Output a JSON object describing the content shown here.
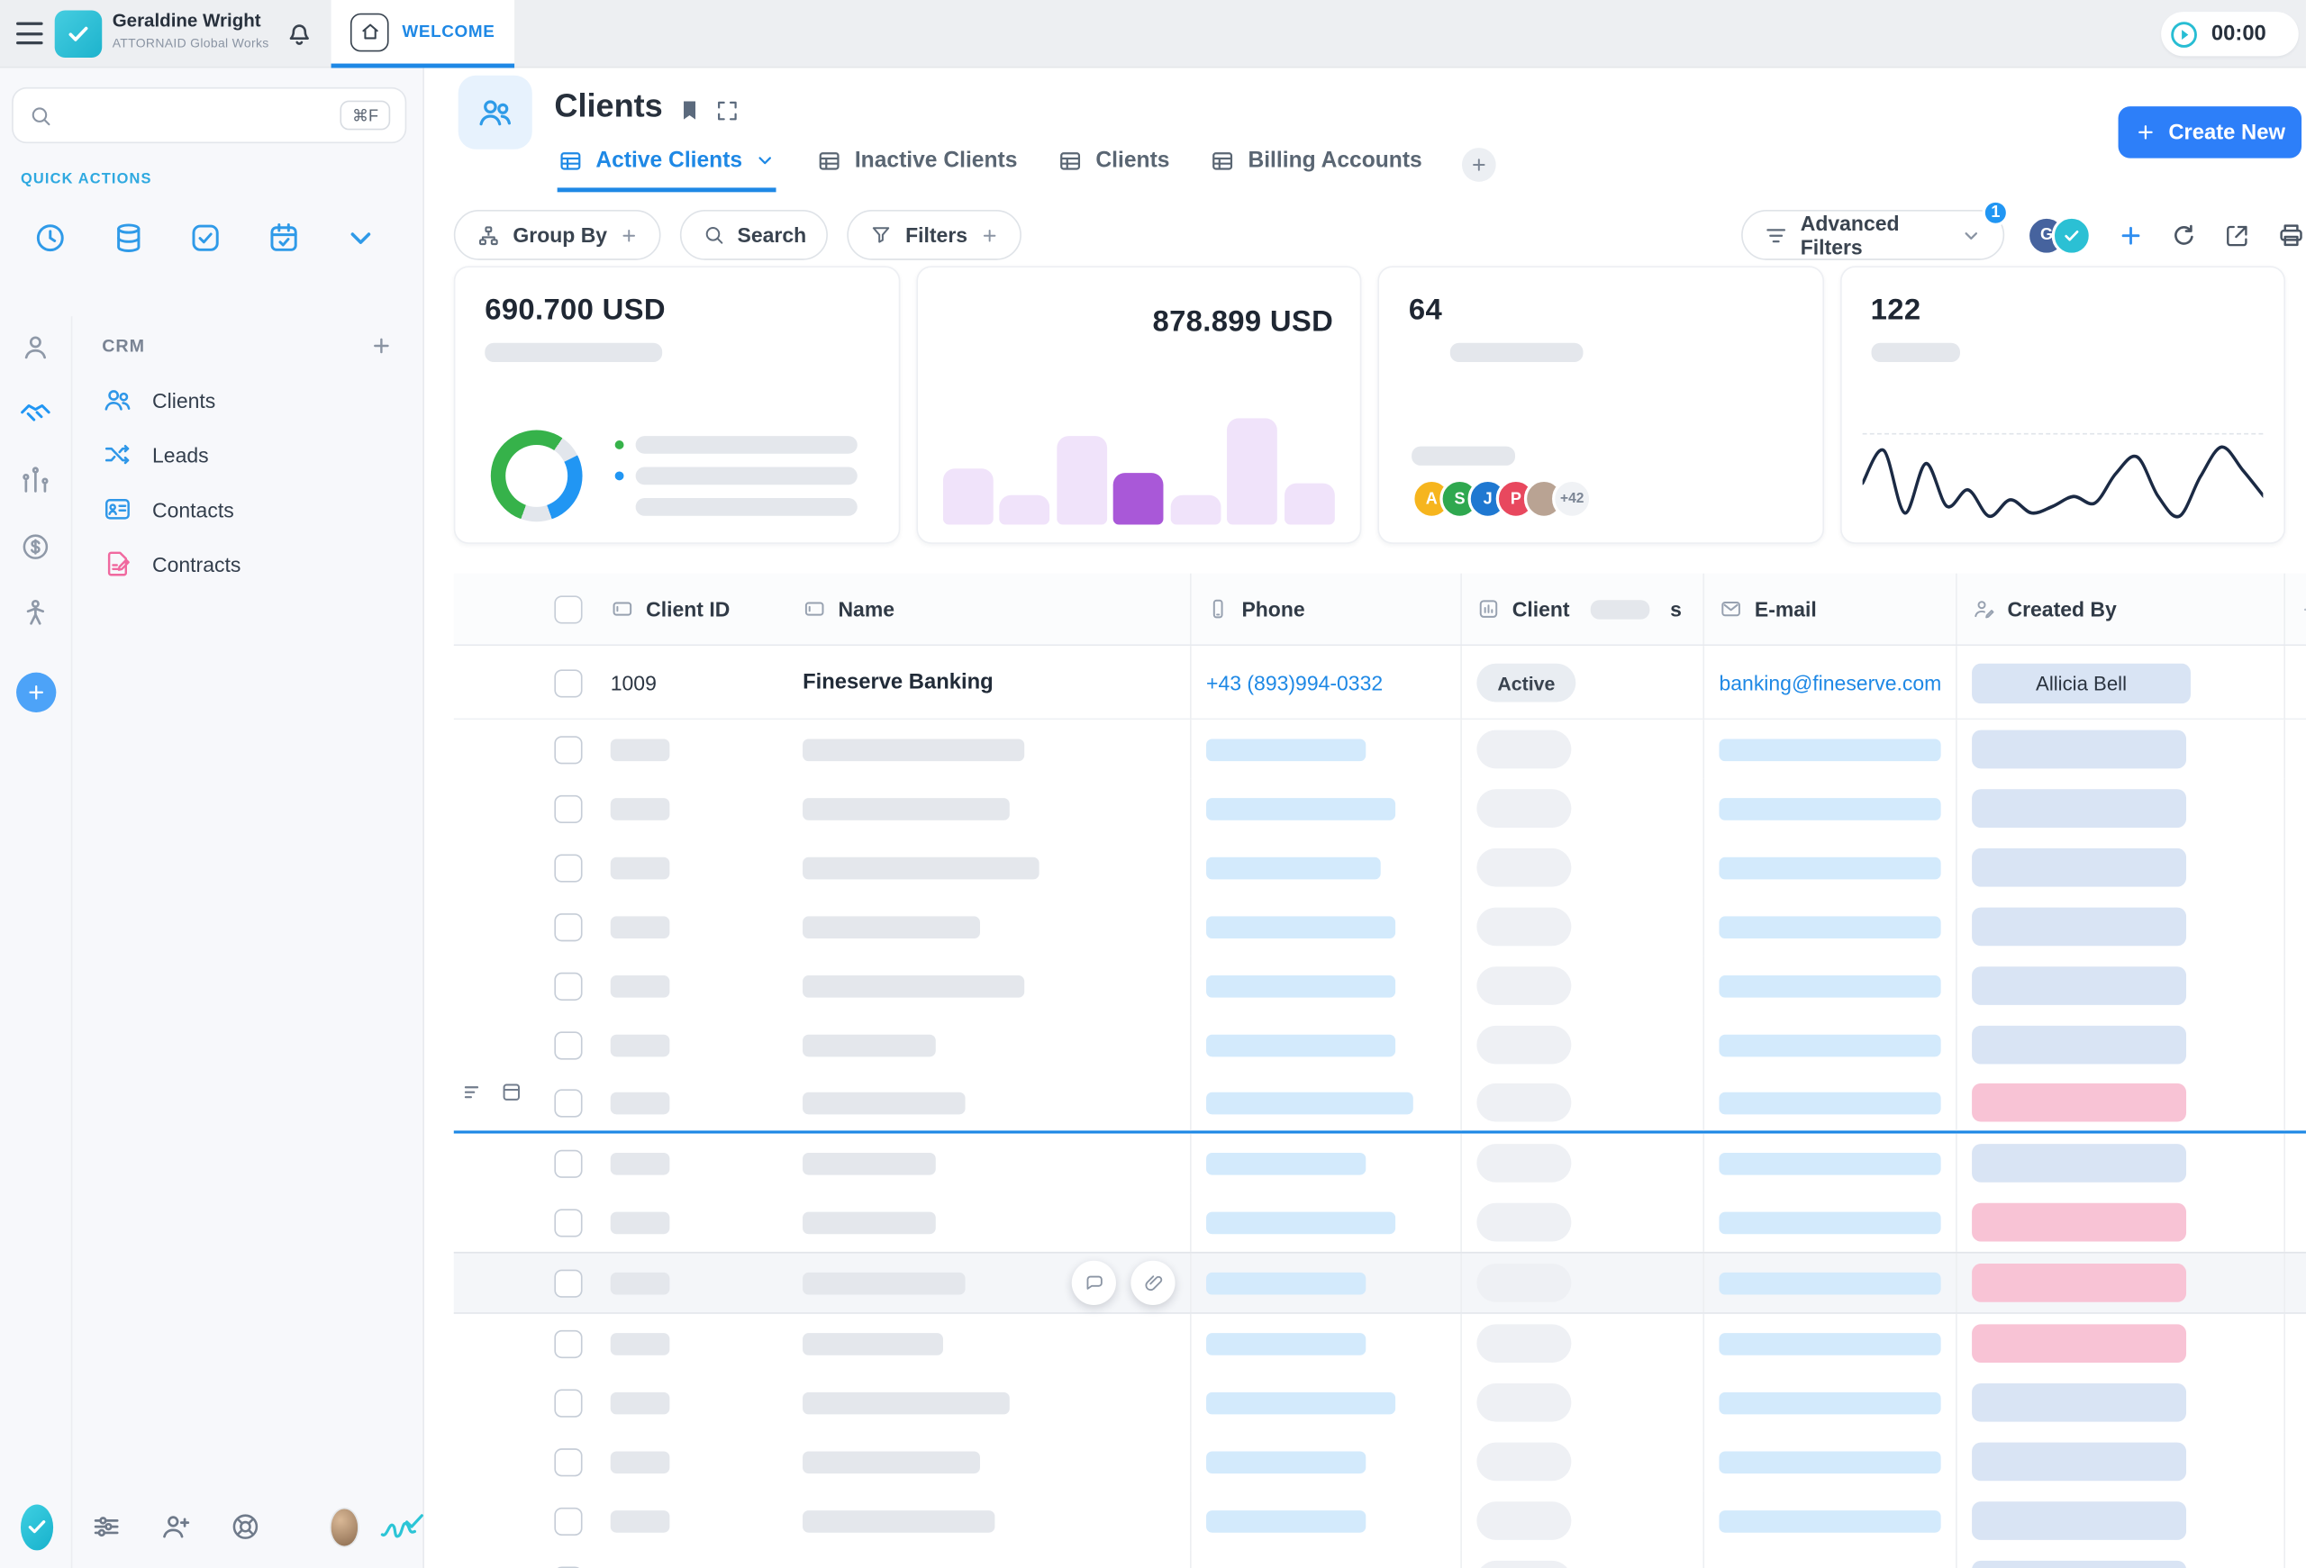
{
  "app": {
    "user_name": "Geraldine Wright",
    "org_name": "ATTORNAID Global Works",
    "active_top_tab": "WELCOME",
    "timer": "00:00"
  },
  "sidebar": {
    "search": {
      "placeholder": "",
      "shortcut": "⌘F"
    },
    "quick_actions_label": "QUICK ACTIONS",
    "crm": {
      "title": "CRM",
      "items": [
        {
          "label": "Clients"
        },
        {
          "label": "Leads"
        },
        {
          "label": "Contacts"
        },
        {
          "label": "Contracts"
        }
      ]
    }
  },
  "page": {
    "title": "Clients",
    "tabs": [
      {
        "label": "Active Clients",
        "active": true
      },
      {
        "label": "Inactive Clients",
        "active": false
      },
      {
        "label": "Clients",
        "active": false
      },
      {
        "label": "Billing Accounts",
        "active": false
      }
    ],
    "toolbar": {
      "group_by_label": "Group By",
      "search_label": "Search",
      "filters_label": "Filters",
      "advanced_filters_label": "Advanced Filters",
      "advanced_filters_badge": "1",
      "create_new_label": "Create New"
    }
  },
  "colors": {
    "accent_blue": "#1e88e5",
    "create_button": "#2d7ff9",
    "brand_teal": "#2cc5d6",
    "skeleton_gray": "#e4e7ec",
    "skeleton_blue": "#d3eafc",
    "chip_blue": "#d9e4f4",
    "chip_pink": "#f8c3d5"
  },
  "kpis": [
    {
      "value": "690.700 USD",
      "type": "donut",
      "segments": [
        {
          "color": "#36b24a",
          "pct": 54
        },
        {
          "color": "#e2e6ec",
          "pct": 8
        },
        {
          "color": "#2196f3",
          "pct": 27
        },
        {
          "color": "#e2e6ec",
          "pct": 11
        }
      ],
      "legend_dots": [
        "#36b24a",
        "#2196f3",
        null
      ]
    },
    {
      "value": "878.899 USD",
      "type": "bar",
      "values": [
        38,
        20,
        60,
        35,
        20,
        72,
        28
      ],
      "highlight_index": 3,
      "bar_color": "#f0e3fa",
      "highlight_color": "#a958d8"
    },
    {
      "value": "64",
      "type": "avatars",
      "avatars": [
        {
          "bg": "#f6b51e",
          "initial": "A"
        },
        {
          "bg": "#2fa84f",
          "initial": "S"
        },
        {
          "bg": "#1f78d1",
          "initial": "J"
        },
        {
          "bg": "#e8485e",
          "initial": "P"
        },
        {
          "bg": "#b9a393",
          "initial": ""
        }
      ],
      "more": "+42"
    },
    {
      "value": "122",
      "type": "line",
      "line_color": "#1b2a44",
      "points": [
        26,
        6,
        44,
        14,
        40,
        30,
        46,
        36,
        44,
        40,
        34,
        38,
        20,
        10,
        34,
        46,
        22,
        4,
        18,
        34
      ]
    }
  ],
  "table": {
    "columns": {
      "client_id": "Client ID",
      "name": "Name",
      "phone": "Phone",
      "status_prefix": "Client",
      "status_suffix": "s",
      "email": "E-mail",
      "created_by": "Created By"
    },
    "first_row": {
      "client_id": "1009",
      "name": "Fineserve Banking",
      "phone": "+43 (893)994-0332",
      "status": "Active",
      "email": "banking@fineserve.com",
      "created_by": "Allicia Bell"
    },
    "skeleton_rows": [
      {
        "id_w": 40,
        "name_w": 150,
        "phone_w": 108,
        "email_w": 160,
        "created": "blue"
      },
      {
        "id_w": 40,
        "name_w": 140,
        "phone_w": 128,
        "email_w": 160,
        "created": "blue"
      },
      {
        "id_w": 40,
        "name_w": 160,
        "phone_w": 118,
        "email_w": 160,
        "created": "blue"
      },
      {
        "id_w": 40,
        "name_w": 120,
        "phone_w": 128,
        "email_w": 160,
        "created": "blue"
      },
      {
        "id_w": 40,
        "name_w": 150,
        "phone_w": 128,
        "email_w": 160,
        "created": "blue"
      },
      {
        "id_w": 40,
        "name_w": 90,
        "phone_w": 128,
        "email_w": 160,
        "created": "blue"
      },
      {
        "id_w": 40,
        "name_w": 110,
        "phone_w": 140,
        "email_w": 160,
        "created": "pink",
        "divider": true
      },
      {
        "id_w": 40,
        "name_w": 90,
        "phone_w": 108,
        "email_w": 160,
        "created": "blue"
      },
      {
        "id_w": 40,
        "name_w": 90,
        "phone_w": 128,
        "email_w": 160,
        "created": "pink"
      },
      {
        "id_w": 40,
        "name_w": 110,
        "phone_w": 108,
        "email_w": 160,
        "created": "pink",
        "special": true
      },
      {
        "id_w": 40,
        "name_w": 95,
        "phone_w": 108,
        "email_w": 160,
        "created": "pink"
      },
      {
        "id_w": 40,
        "name_w": 140,
        "phone_w": 128,
        "email_w": 160,
        "created": "blue"
      },
      {
        "id_w": 40,
        "name_w": 120,
        "phone_w": 108,
        "email_w": 160,
        "created": "blue"
      },
      {
        "id_w": 40,
        "name_w": 130,
        "phone_w": 108,
        "email_w": 160,
        "created": "blue"
      },
      {
        "id_w": 40,
        "name_w": 120,
        "phone_w": 108,
        "email_w": 160,
        "created": "blue"
      }
    ]
  }
}
